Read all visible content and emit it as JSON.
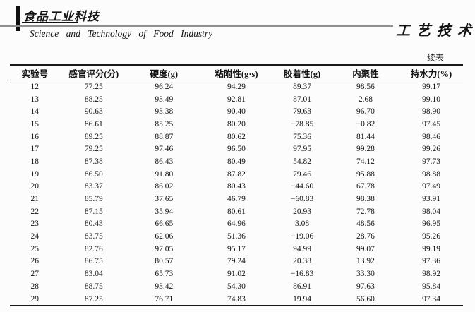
{
  "header": {
    "journal_logo_cn": "食品工业科技",
    "journal_name_en": "Science  and  Technology  of  Food  Industry",
    "section_title": "工艺技术"
  },
  "table": {
    "continued_label": "续表",
    "columns": [
      "实验号",
      "感官评分(分)",
      "硬度(g)",
      "粘附性(g·s)",
      "胶着性(g)",
      "内聚性",
      "持水力(%)"
    ],
    "rows": [
      [
        "12",
        "77.25",
        "96.24",
        "94.29",
        "89.37",
        "98.56",
        "99.17"
      ],
      [
        "13",
        "88.25",
        "93.49",
        "92.81",
        "87.01",
        "2.68",
        "99.10"
      ],
      [
        "14",
        "90.63",
        "93.38",
        "90.40",
        "79.63",
        "96.70",
        "98.90"
      ],
      [
        "15",
        "86.61",
        "85.25",
        "80.20",
        "−78.85",
        "−0.82",
        "97.45"
      ],
      [
        "16",
        "89.25",
        "88.87",
        "80.62",
        "75.36",
        "81.44",
        "98.46"
      ],
      [
        "17",
        "79.25",
        "97.46",
        "96.50",
        "97.95",
        "99.28",
        "99.26"
      ],
      [
        "18",
        "87.38",
        "86.43",
        "80.49",
        "54.82",
        "74.12",
        "97.73"
      ],
      [
        "19",
        "86.50",
        "91.80",
        "87.82",
        "79.46",
        "95.88",
        "98.88"
      ],
      [
        "20",
        "83.37",
        "86.02",
        "80.43",
        "−44.60",
        "67.78",
        "97.49"
      ],
      [
        "21",
        "85.79",
        "37.65",
        "46.79",
        "−60.83",
        "98.38",
        "93.91"
      ],
      [
        "22",
        "87.15",
        "35.94",
        "80.61",
        "20.93",
        "72.78",
        "98.04"
      ],
      [
        "23",
        "80.43",
        "66.65",
        "64.96",
        "3.08",
        "48.56",
        "96.95"
      ],
      [
        "24",
        "83.75",
        "62.06",
        "51.36",
        "−19.06",
        "28.76",
        "95.26"
      ],
      [
        "25",
        "82.76",
        "97.05",
        "95.17",
        "94.99",
        "99.07",
        "99.19"
      ],
      [
        "26",
        "86.75",
        "80.57",
        "79.24",
        "20.38",
        "13.92",
        "97.36"
      ],
      [
        "27",
        "83.04",
        "65.73",
        "91.02",
        "−16.83",
        "33.30",
        "98.92"
      ],
      [
        "28",
        "88.75",
        "93.42",
        "54.30",
        "86.91",
        "97.63",
        "95.84"
      ],
      [
        "29",
        "87.25",
        "76.71",
        "74.83",
        "19.94",
        "56.60",
        "97.34"
      ]
    ]
  },
  "colors": {
    "page_background": "#fcfcfc",
    "text": "#141414",
    "rule_gray": "#8f8f8f",
    "rule_black": "#1a1a1a"
  }
}
